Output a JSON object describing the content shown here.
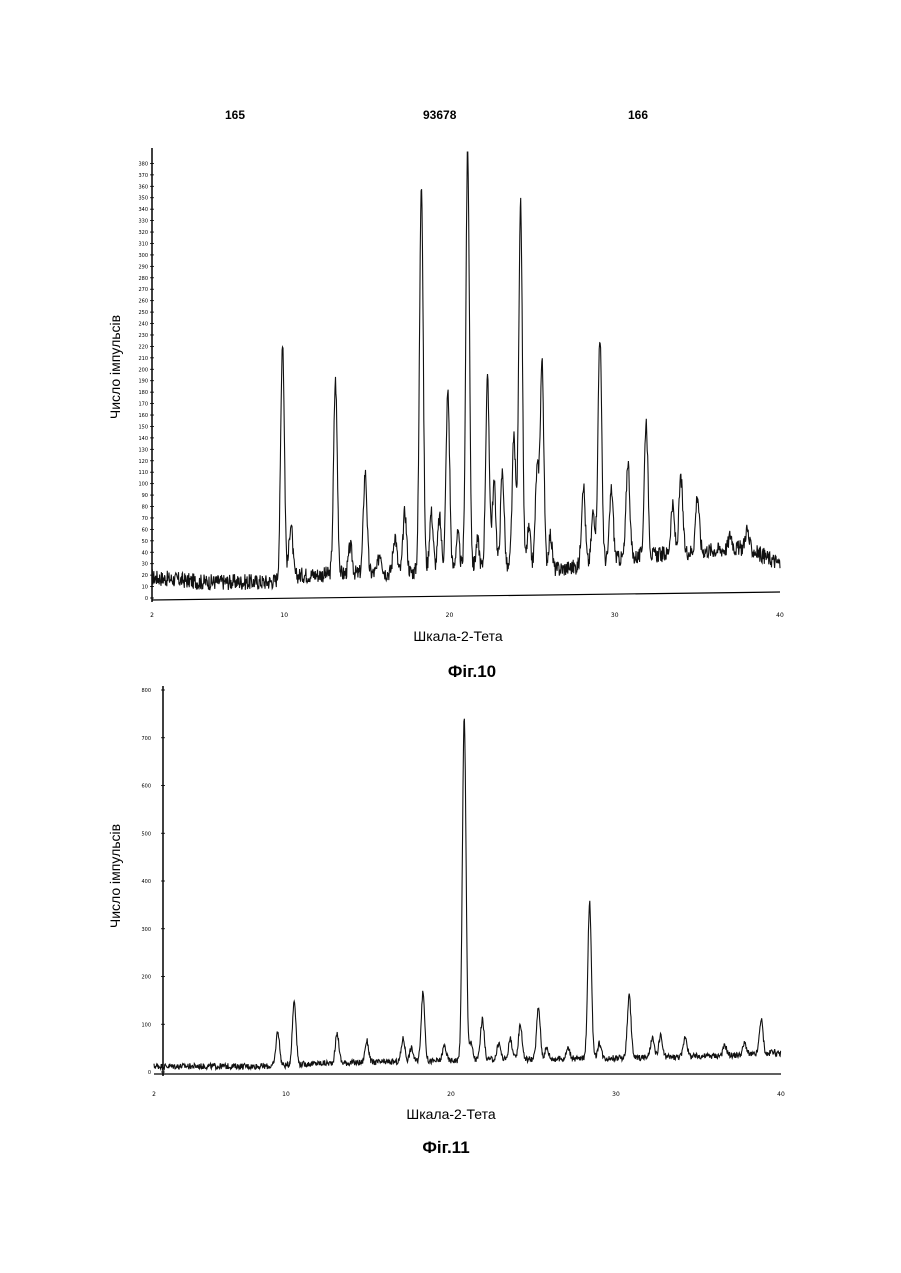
{
  "header": {
    "left": "165",
    "center": "93678",
    "right": "166"
  },
  "chart_data": [
    {
      "type": "line",
      "caption": "Фіг.10",
      "xlabel": "Шкала-2-Тета",
      "ylabel": "Число імпульсів",
      "xlim": [
        2,
        40
      ],
      "ylim": [
        0,
        390
      ],
      "x_ticks": [
        2,
        10,
        20,
        30,
        40
      ],
      "y_ticks": [
        0,
        10,
        20,
        30,
        40,
        50,
        60,
        70,
        80,
        90,
        100,
        110,
        120,
        130,
        140,
        150,
        160,
        170,
        180,
        190,
        200,
        210,
        220,
        230,
        240,
        250,
        260,
        270,
        280,
        290,
        300,
        310,
        320,
        330,
        340,
        350,
        360,
        370,
        380
      ],
      "baseline": [
        [
          2,
          18
        ],
        [
          5,
          14
        ],
        [
          9,
          14
        ],
        [
          11,
          20
        ],
        [
          16,
          22
        ],
        [
          20,
          24
        ],
        [
          24,
          25
        ],
        [
          26,
          24
        ],
        [
          28,
          28
        ],
        [
          30,
          34
        ],
        [
          34,
          40
        ],
        [
          38,
          44
        ],
        [
          40,
          30
        ]
      ],
      "peaks": [
        {
          "x": 9.9,
          "y": 225
        },
        {
          "x": 10.4,
          "y": 65
        },
        {
          "x": 13.1,
          "y": 190
        },
        {
          "x": 14.0,
          "y": 45
        },
        {
          "x": 14.9,
          "y": 110
        },
        {
          "x": 15.8,
          "y": 40
        },
        {
          "x": 16.7,
          "y": 55
        },
        {
          "x": 17.3,
          "y": 75
        },
        {
          "x": 18.3,
          "y": 365
        },
        {
          "x": 18.9,
          "y": 75
        },
        {
          "x": 19.4,
          "y": 70
        },
        {
          "x": 19.9,
          "y": 180
        },
        {
          "x": 20.5,
          "y": 55
        },
        {
          "x": 21.1,
          "y": 390
        },
        {
          "x": 21.7,
          "y": 50
        },
        {
          "x": 22.3,
          "y": 190
        },
        {
          "x": 22.7,
          "y": 100
        },
        {
          "x": 23.2,
          "y": 110
        },
        {
          "x": 23.9,
          "y": 140
        },
        {
          "x": 24.3,
          "y": 345
        },
        {
          "x": 24.8,
          "y": 60
        },
        {
          "x": 25.3,
          "y": 110
        },
        {
          "x": 25.6,
          "y": 205
        },
        {
          "x": 26.1,
          "y": 55
        },
        {
          "x": 28.1,
          "y": 100
        },
        {
          "x": 28.7,
          "y": 75
        },
        {
          "x": 29.1,
          "y": 230
        },
        {
          "x": 29.8,
          "y": 95
        },
        {
          "x": 30.8,
          "y": 120
        },
        {
          "x": 31.9,
          "y": 155
        },
        {
          "x": 33.5,
          "y": 80
        },
        {
          "x": 34.0,
          "y": 105
        },
        {
          "x": 35.0,
          "y": 90
        },
        {
          "x": 37.0,
          "y": 55
        },
        {
          "x": 38.0,
          "y": 60
        }
      ]
    },
    {
      "type": "line",
      "caption": "Фіг.11",
      "xlabel": "Шкала-2-Тета",
      "ylabel": "Число імпульсів",
      "xlim": [
        2,
        40
      ],
      "ylim": [
        0,
        800
      ],
      "x_ticks": [
        2,
        10,
        20,
        30,
        40
      ],
      "y_ticks": [
        0,
        100,
        200,
        300,
        400,
        500,
        600,
        700,
        800
      ],
      "baseline": [
        [
          2,
          12
        ],
        [
          9,
          12
        ],
        [
          12,
          18
        ],
        [
          18,
          22
        ],
        [
          22,
          26
        ],
        [
          28,
          28
        ],
        [
          34,
          32
        ],
        [
          40,
          38
        ]
      ],
      "peaks": [
        {
          "x": 9.5,
          "y": 85
        },
        {
          "x": 10.5,
          "y": 150
        },
        {
          "x": 13.1,
          "y": 80
        },
        {
          "x": 14.9,
          "y": 65
        },
        {
          "x": 17.1,
          "y": 70
        },
        {
          "x": 17.6,
          "y": 50
        },
        {
          "x": 18.3,
          "y": 165
        },
        {
          "x": 19.6,
          "y": 55
        },
        {
          "x": 20.8,
          "y": 740
        },
        {
          "x": 21.2,
          "y": 60
        },
        {
          "x": 21.9,
          "y": 110
        },
        {
          "x": 22.9,
          "y": 60
        },
        {
          "x": 23.6,
          "y": 70
        },
        {
          "x": 24.2,
          "y": 100
        },
        {
          "x": 25.3,
          "y": 135
        },
        {
          "x": 25.8,
          "y": 50
        },
        {
          "x": 27.1,
          "y": 50
        },
        {
          "x": 28.4,
          "y": 355
        },
        {
          "x": 29.0,
          "y": 60
        },
        {
          "x": 30.8,
          "y": 160
        },
        {
          "x": 32.2,
          "y": 70
        },
        {
          "x": 32.7,
          "y": 75
        },
        {
          "x": 34.2,
          "y": 75
        },
        {
          "x": 36.6,
          "y": 55
        },
        {
          "x": 37.8,
          "y": 60
        },
        {
          "x": 38.8,
          "y": 110
        },
        {
          "x": 39.5,
          "y": 45
        }
      ]
    }
  ]
}
